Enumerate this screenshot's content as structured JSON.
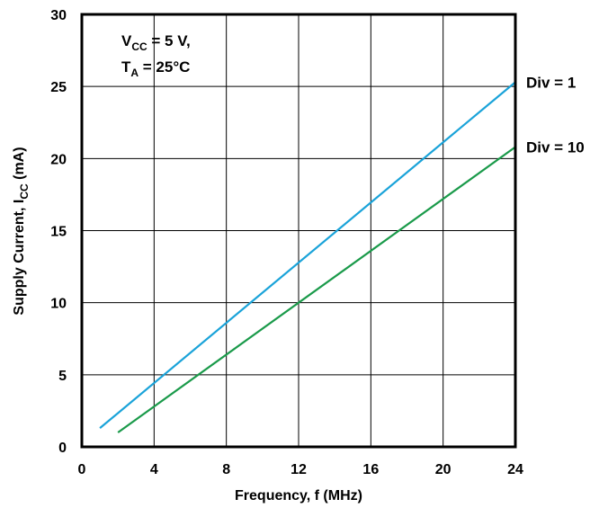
{
  "chart_data": {
    "type": "line",
    "xlabel": "Frequency, f (MHz)",
    "ylabel": "Supply Current, I",
    "ylabel_sub": "CC",
    "ylabel_suffix": " (mA)",
    "xlim": [
      0,
      24
    ],
    "ylim": [
      0,
      30
    ],
    "x_ticks": [
      0,
      4,
      8,
      12,
      16,
      20,
      24
    ],
    "y_ticks": [
      0,
      5,
      10,
      15,
      20,
      25,
      30
    ],
    "grid": true,
    "legend": "inline-right",
    "annotation": {
      "line1_main": "V",
      "line1_sub": "CC",
      "line1_rest": " = 5 V,",
      "line2_main": "T",
      "line2_sub": "A",
      "line2_rest": " = 25°C"
    },
    "series": [
      {
        "name": "Div = 1",
        "color": "#1aa3d9",
        "x": [
          1,
          24
        ],
        "y": [
          1.3,
          25.3
        ]
      },
      {
        "name": "Div = 10",
        "color": "#1a9a4a",
        "x": [
          2,
          24
        ],
        "y": [
          1.0,
          20.8
        ]
      }
    ]
  }
}
